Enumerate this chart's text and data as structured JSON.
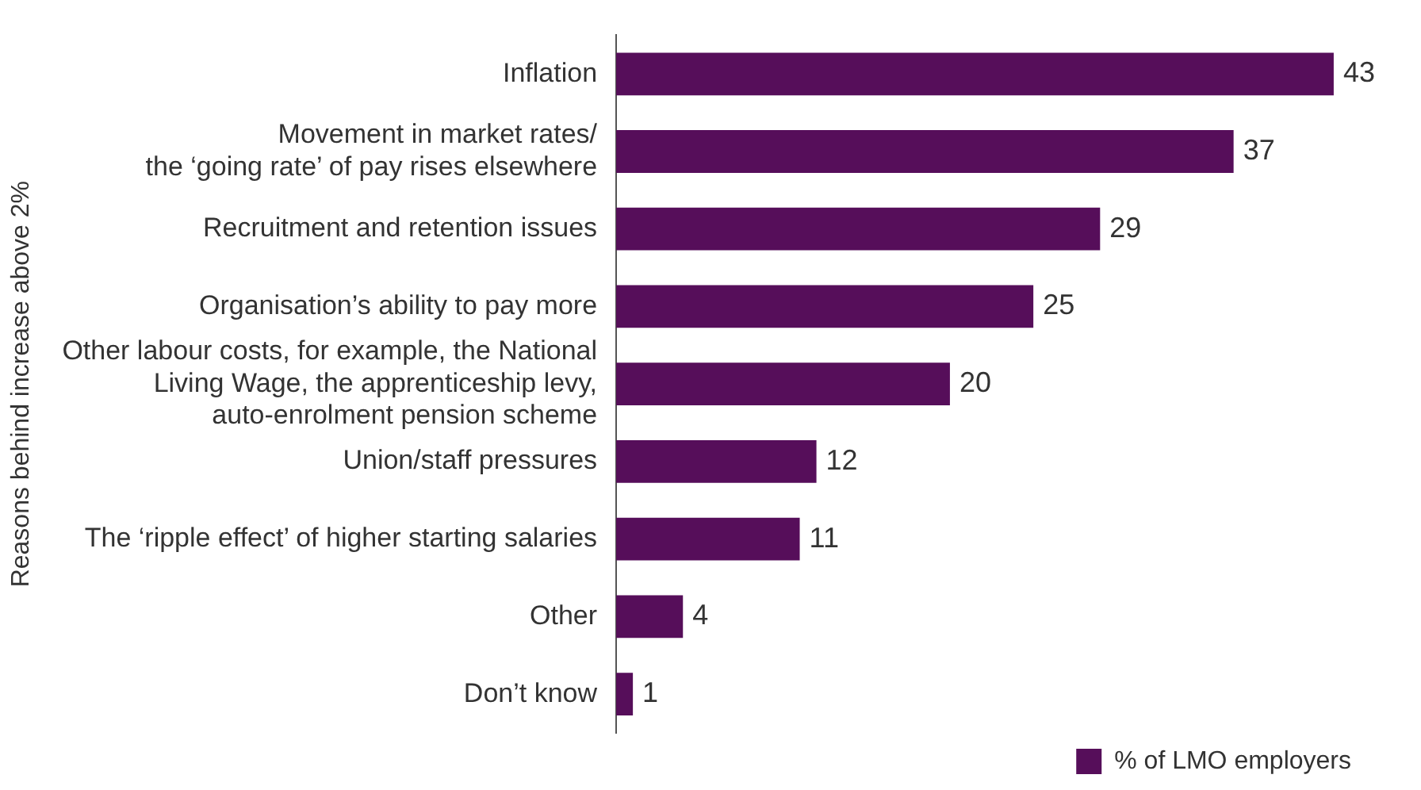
{
  "chart_data": {
    "type": "bar",
    "orientation": "horizontal",
    "ylabel": "Reasons behind increase above 2%",
    "categories": [
      "Inflation",
      "Movement in market rates/\nthe ‘going rate’ of pay rises elsewhere",
      "Recruitment and retention issues",
      "Organisation’s ability to pay more",
      "Other labour costs, for example, the National\nLiving Wage, the apprenticeship levy,\nauto-enrolment pension scheme",
      "Union/staff pressures",
      "The ‘ripple effect’ of higher starting salaries",
      "Other",
      "Don’t know"
    ],
    "series": [
      {
        "name": "% of LMO employers",
        "color": "#560e5a",
        "values": [
          43,
          37,
          29,
          25,
          20,
          12,
          11,
          4,
          1
        ]
      }
    ],
    "data_labels": true,
    "grid": false,
    "legend": "bottom right"
  }
}
